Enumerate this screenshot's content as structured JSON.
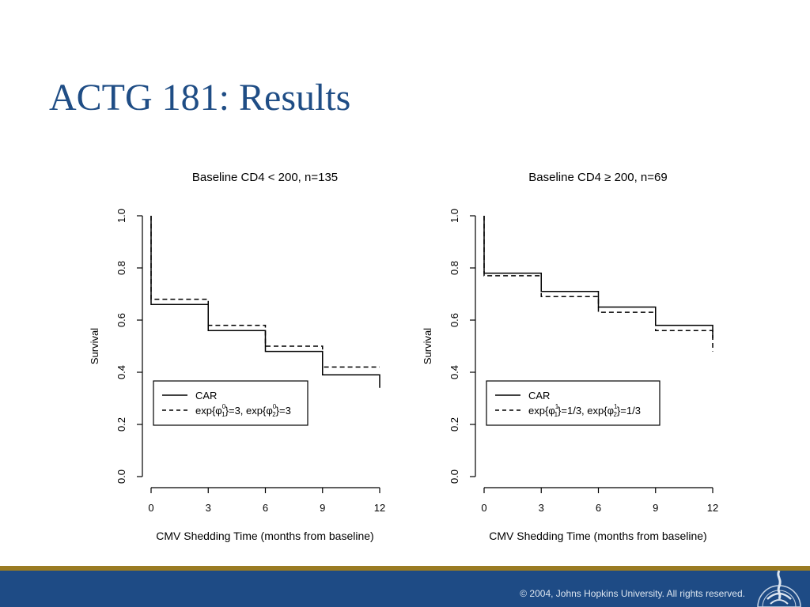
{
  "slide": {
    "title": "ACTG 181: Results",
    "copyright": "© 2004, Johns Hopkins University. All rights reserved.",
    "colors": {
      "title": "#1f4d85",
      "footer_bar": "#1e4b85",
      "footer_stripe": "#9a7b23"
    },
    "icons": {
      "logo": "university-seal-icon"
    }
  },
  "chart_data": [
    {
      "type": "line",
      "step": true,
      "title": "Baseline CD4 < 200, n=135",
      "xlabel": "CMV Shedding Time (months from baseline)",
      "ylabel": "Survival",
      "x_ticks": [
        0,
        3,
        6,
        9,
        12
      ],
      "y_ticks": [
        0.0,
        0.2,
        0.4,
        0.6,
        0.8,
        1.0
      ],
      "xlim": [
        0,
        12
      ],
      "ylim": [
        0,
        1
      ],
      "grid": false,
      "legend": {
        "position": "bottom-left"
      },
      "series": [
        {
          "name": "CAR",
          "style": "solid",
          "x": [
            0,
            0,
            3,
            6,
            9,
            12
          ],
          "y": [
            1.0,
            0.66,
            0.56,
            0.48,
            0.39,
            0.34
          ]
        },
        {
          "name": "exp{φ_1^0}=3, exp{φ_2^0}=3",
          "style": "dashed",
          "x": [
            0,
            0,
            3,
            6,
            9,
            12
          ],
          "y": [
            1.0,
            0.68,
            0.58,
            0.5,
            0.42,
            0.42
          ]
        }
      ],
      "legend_text": {
        "series_0": "CAR",
        "series_1": {
          "pre": "exp{φ",
          "sub1": "1",
          "sup1": "0",
          "mid": "}=3, exp{φ",
          "sub2": "2",
          "sup2": "0",
          "post": "}=3"
        }
      }
    },
    {
      "type": "line",
      "step": true,
      "title": "Baseline CD4 ≥ 200, n=69",
      "xlabel": "CMV Shedding Time (months from baseline)",
      "ylabel": "Survival",
      "x_ticks": [
        0,
        3,
        6,
        9,
        12
      ],
      "y_ticks": [
        0.0,
        0.2,
        0.4,
        0.6,
        0.8,
        1.0
      ],
      "xlim": [
        0,
        12
      ],
      "ylim": [
        0,
        1
      ],
      "grid": false,
      "legend": {
        "position": "bottom-left"
      },
      "series": [
        {
          "name": "CAR",
          "style": "solid",
          "x": [
            0,
            0,
            3,
            6,
            9,
            12
          ],
          "y": [
            1.0,
            0.78,
            0.71,
            0.65,
            0.58,
            0.53
          ]
        },
        {
          "name": "exp{φ_1^1}=1/3, exp{φ_2^1}=1/3",
          "style": "dashed",
          "x": [
            0,
            0,
            3,
            6,
            9,
            12
          ],
          "y": [
            1.0,
            0.77,
            0.69,
            0.63,
            0.56,
            0.48
          ]
        }
      ],
      "legend_text": {
        "series_0": "CAR",
        "series_1": {
          "pre": "exp{φ",
          "sub1": "1",
          "sup1": "1",
          "mid": "}=1/3, exp{φ",
          "sub2": "2",
          "sup2": "1",
          "post": "}=1/3"
        }
      }
    }
  ]
}
